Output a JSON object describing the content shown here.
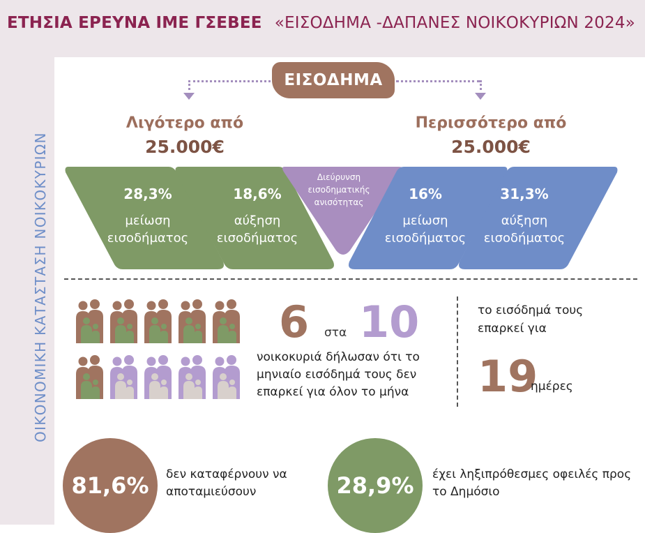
{
  "header": {
    "title": "ΕΤΗΣΙΑ ΕΡΕΥΝΑ ΙΜΕ ΓΣΕΒΕΕ",
    "subtitle": "«ΕΙΣΟΔΗΜΑ -ΔΑΠΑΝΕΣ ΝΟΙΚΟΚΥΡΙΩΝ 2024»"
  },
  "sidebar": {
    "label": "ΟΙΚΟΝΟΜΙΚΗ ΚΑΤΑΣΤΑΣΗ ΝΟΙΚΟΚΥΡΙΩΝ"
  },
  "income": {
    "title": "ΕΙΣΟΔΗΜΑ",
    "less_label": "Λιγότερο από",
    "less_value": "25.000€",
    "more_label": "Περισσότερο από",
    "more_value": "25.000€",
    "inequality_label": "Διεύρυνση εισοδηματικής ανισότητας",
    "boxes": [
      {
        "pct": "28,3%",
        "line1": "μείωση",
        "line2": "εισοδήματος",
        "color": "#7f9a66"
      },
      {
        "pct": "18,6%",
        "line1": "αύξηση",
        "line2": "εισοδήματος",
        "color": "#7f9a66"
      },
      {
        "pct": "16%",
        "line1": "μείωση",
        "line2": "εισοδήματος",
        "color": "#6f8dc8"
      },
      {
        "pct": "31,3%",
        "line1": "αύξηση",
        "line2": "εισοδήματος",
        "color": "#6f8dc8"
      }
    ]
  },
  "households": {
    "count": "6",
    "of_word": "στα",
    "total": "10",
    "description": "νοικοκυριά δήλωσαν ότι το μηνιαίο εισόδημά τους δεν επαρκεί για όλον το μήνα",
    "affected_fraction": 0.6
  },
  "duration": {
    "label": "το εισόδημά τους επαρκεί για",
    "days": "19",
    "unit": "ημέρες"
  },
  "stats": [
    {
      "value": "81,6%",
      "text": "δεν καταφέρνουν να αποταμιεύσουν",
      "color": "#a07460"
    },
    {
      "value": "28,9%",
      "text": "έχει ληξιπρόθεσμες οφειλές προς το Δημόσιο",
      "color": "#7f9a66"
    }
  ],
  "colors": {
    "brown": "#a07460",
    "green": "#7f9a66",
    "blue": "#6f8dc8",
    "purple": "#b39ccf",
    "header_text": "#8b2350"
  }
}
